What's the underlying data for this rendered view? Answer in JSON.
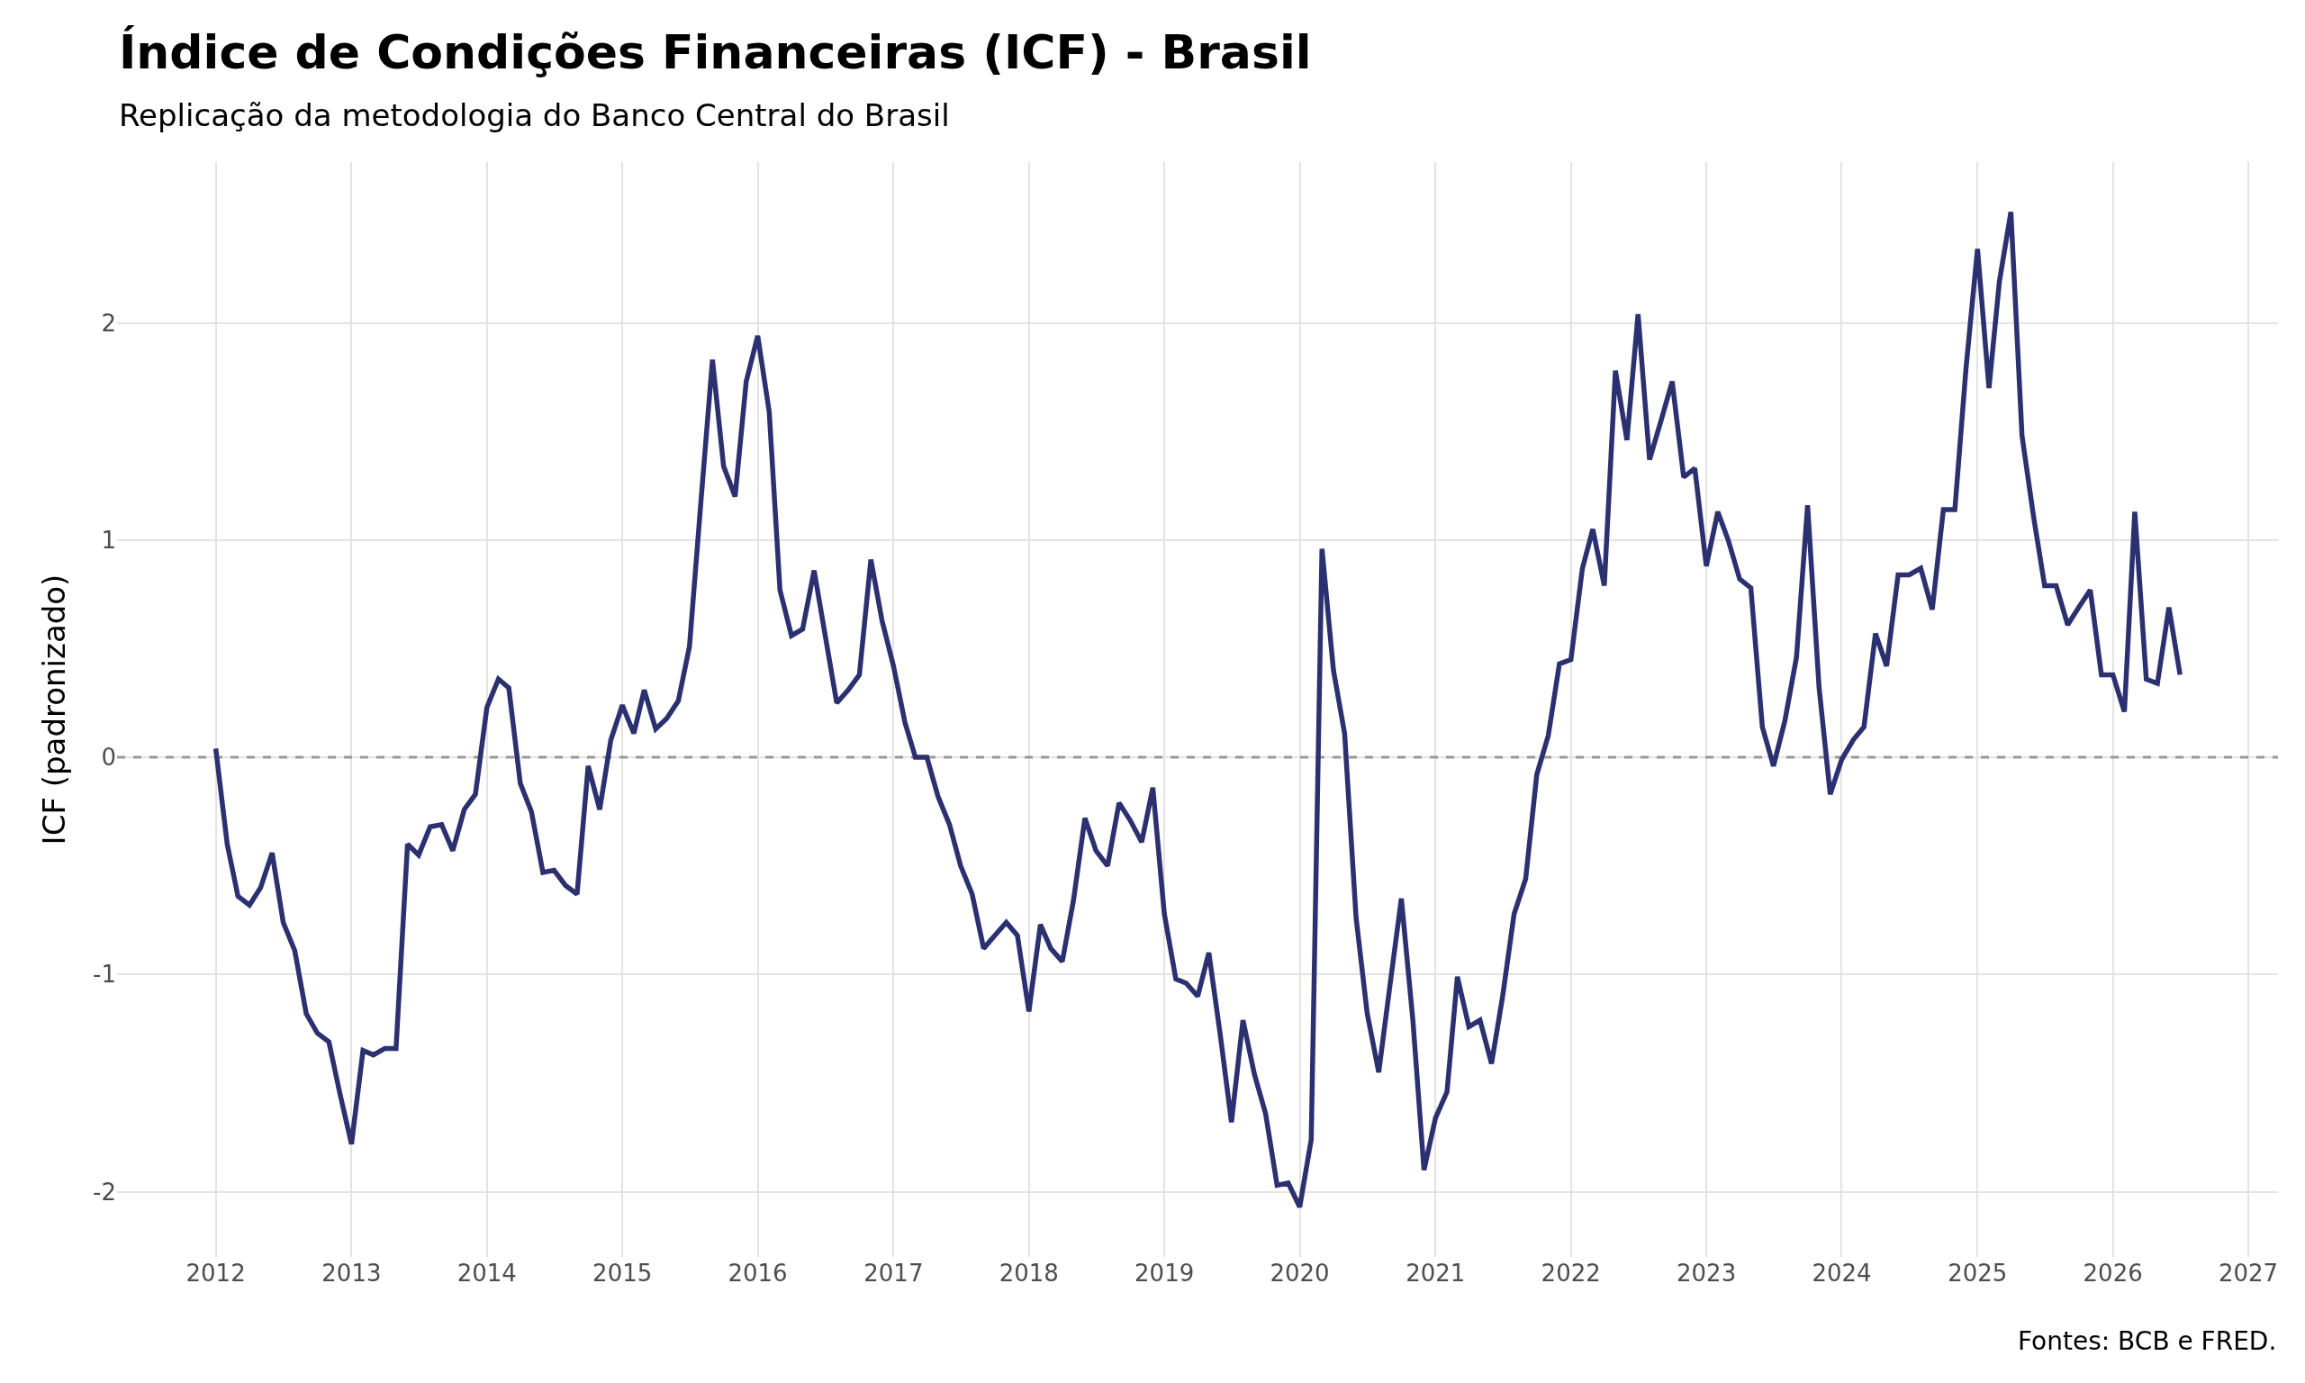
{
  "chart_data": {
    "type": "line",
    "title": "Índice de Condições Financeiras (ICF) - Brasil",
    "subtitle": "Replicação da metodologia do Banco Central do Brasil",
    "ylabel": "ICF (padronizado)",
    "annotations": [
      "Fontes: BCB e FRED."
    ],
    "x": [
      "2012-01",
      "2012-02",
      "2012-03",
      "2012-04",
      "2012-05",
      "2012-06",
      "2012-07",
      "2012-08",
      "2012-09",
      "2012-10",
      "2012-11",
      "2012-12",
      "2013-01",
      "2013-02",
      "2013-03",
      "2013-04",
      "2013-05",
      "2013-06",
      "2013-07",
      "2013-08",
      "2013-09",
      "2013-10",
      "2013-11",
      "2013-12",
      "2014-01",
      "2014-02",
      "2014-03",
      "2014-04",
      "2014-05",
      "2014-06",
      "2014-07",
      "2014-08",
      "2014-09",
      "2014-10",
      "2014-11",
      "2014-12",
      "2015-01",
      "2015-02",
      "2015-03",
      "2015-04",
      "2015-05",
      "2015-06",
      "2015-07",
      "2015-08",
      "2015-09",
      "2015-10",
      "2015-11",
      "2015-12",
      "2016-01",
      "2016-02",
      "2016-03",
      "2016-04",
      "2016-05",
      "2016-06",
      "2016-07",
      "2016-08",
      "2016-09",
      "2016-10",
      "2016-11",
      "2016-12",
      "2017-01",
      "2017-02",
      "2017-03",
      "2017-04",
      "2017-05",
      "2017-06",
      "2017-07",
      "2017-08",
      "2017-09",
      "2017-10",
      "2017-11",
      "2017-12",
      "2018-01",
      "2018-02",
      "2018-03",
      "2018-04",
      "2018-05",
      "2018-06",
      "2018-07",
      "2018-08",
      "2018-09",
      "2018-10",
      "2018-11",
      "2018-12",
      "2019-01",
      "2019-02",
      "2019-03",
      "2019-04",
      "2019-05",
      "2019-06",
      "2019-07",
      "2019-08",
      "2019-09",
      "2019-10",
      "2019-11",
      "2019-12",
      "2020-01",
      "2020-02",
      "2020-03",
      "2020-04",
      "2020-05",
      "2020-06",
      "2020-07",
      "2020-08",
      "2020-09",
      "2020-10",
      "2020-11",
      "2020-12",
      "2021-01",
      "2021-02",
      "2021-03",
      "2021-04",
      "2021-05",
      "2021-06",
      "2021-07",
      "2021-08",
      "2021-09",
      "2021-10",
      "2021-11",
      "2021-12",
      "2022-01",
      "2022-02",
      "2022-03",
      "2022-04",
      "2022-05",
      "2022-06",
      "2022-07",
      "2022-08",
      "2022-09",
      "2022-10",
      "2022-11",
      "2022-12",
      "2023-01",
      "2023-02",
      "2023-03",
      "2023-04",
      "2023-05",
      "2023-06",
      "2023-07",
      "2023-08",
      "2023-09",
      "2023-10",
      "2023-11",
      "2023-12",
      "2024-01",
      "2024-02",
      "2024-03",
      "2024-04",
      "2024-05",
      "2024-06",
      "2024-07",
      "2024-08",
      "2024-09",
      "2024-10",
      "2024-11",
      "2024-12",
      "2025-01",
      "2025-02",
      "2025-03",
      "2025-04",
      "2025-05",
      "2025-06",
      "2025-07",
      "2025-08",
      "2025-09",
      "2025-10",
      "2025-11",
      "2025-12",
      "2026-01",
      "2026-02",
      "2026-03",
      "2026-04",
      "2026-05",
      "2026-06",
      "2026-07"
    ],
    "series": [
      {
        "color": "#2b3170",
        "values": [
          0.04,
          -0.4,
          -0.64,
          -0.68,
          -0.6,
          -0.44,
          -0.76,
          -0.89,
          -1.18,
          -1.27,
          -1.31,
          -1.55,
          -1.78,
          -1.35,
          -1.37,
          -1.34,
          -1.34,
          -0.4,
          -0.45,
          -0.32,
          -0.31,
          -0.43,
          -0.24,
          -0.17,
          0.23,
          0.36,
          0.32,
          -0.12,
          -0.25,
          -0.53,
          -0.52,
          -0.59,
          -0.63,
          -0.04,
          -0.24,
          0.08,
          0.24,
          0.11,
          0.31,
          0.13,
          0.18,
          0.26,
          0.51,
          1.18,
          1.83,
          1.34,
          1.2,
          1.73,
          1.94,
          1.59,
          0.77,
          0.56,
          0.59,
          0.86,
          0.56,
          0.25,
          0.31,
          0.38,
          0.91,
          0.63,
          0.42,
          0.16,
          0.0,
          0.0,
          -0.18,
          -0.31,
          -0.5,
          -0.63,
          -0.88,
          -0.82,
          -0.76,
          -0.82,
          -1.17,
          -0.77,
          -0.88,
          -0.94,
          -0.66,
          -0.28,
          -0.43,
          -0.5,
          -0.21,
          -0.29,
          -0.39,
          -0.14,
          -0.72,
          -1.02,
          -1.04,
          -1.1,
          -0.9,
          -1.28,
          -1.68,
          -1.21,
          -1.46,
          -1.64,
          -1.97,
          -1.96,
          -2.07,
          -1.76,
          0.96,
          0.4,
          0.11,
          -0.74,
          -1.18,
          -1.45,
          -1.04,
          -0.65,
          -1.21,
          -1.9,
          -1.66,
          -1.54,
          -1.01,
          -1.24,
          -1.21,
          -1.41,
          -1.1,
          -0.72,
          -0.56,
          -0.08,
          0.1,
          0.43,
          0.45,
          0.87,
          1.05,
          0.79,
          1.78,
          1.46,
          2.04,
          1.37,
          1.55,
          1.73,
          1.29,
          1.33,
          0.88,
          1.13,
          1.0,
          0.82,
          0.78,
          0.14,
          -0.04,
          0.17,
          0.46,
          1.16,
          0.32,
          -0.17,
          -0.01,
          0.08,
          0.14,
          0.57,
          0.42,
          0.84,
          0.84,
          0.87,
          0.68,
          1.14,
          1.14,
          1.79,
          2.34,
          1.7,
          2.19,
          2.51,
          1.48,
          1.11,
          0.79,
          0.79,
          0.61,
          0.69,
          0.77,
          0.38,
          0.38,
          0.21,
          1.13,
          0.36,
          0.34,
          0.69,
          0.38
        ]
      }
    ],
    "xlim": [
      "2011-04-10",
      "2027-03-22"
    ],
    "xticks": [
      {
        "value": "2012",
        "label": "2012"
      },
      {
        "value": "2013",
        "label": "2013"
      },
      {
        "value": "2014",
        "label": "2014"
      },
      {
        "value": "2015",
        "label": "2015"
      },
      {
        "value": "2016",
        "label": "2016"
      },
      {
        "value": "2017",
        "label": "2017"
      },
      {
        "value": "2018",
        "label": "2018"
      },
      {
        "value": "2019",
        "label": "2019"
      },
      {
        "value": "2020",
        "label": "2020"
      },
      {
        "value": "2021",
        "label": "2021"
      },
      {
        "value": "2022",
        "label": "2022"
      },
      {
        "value": "2023",
        "label": "2023"
      },
      {
        "value": "2024",
        "label": "2024"
      },
      {
        "value": "2025",
        "label": "2025"
      },
      {
        "value": "2026",
        "label": "2026"
      },
      {
        "value": "2027",
        "label": "2027"
      }
    ],
    "ylim": [
      -2.3,
      2.74
    ],
    "yticks": [
      -2,
      -1,
      0,
      1,
      2
    ],
    "ref_lines": [
      {
        "axis": "y",
        "value": 0,
        "color": "#999999",
        "line_style": "dashed"
      }
    ],
    "grid": true,
    "marker": "none",
    "line_style": "solid"
  }
}
